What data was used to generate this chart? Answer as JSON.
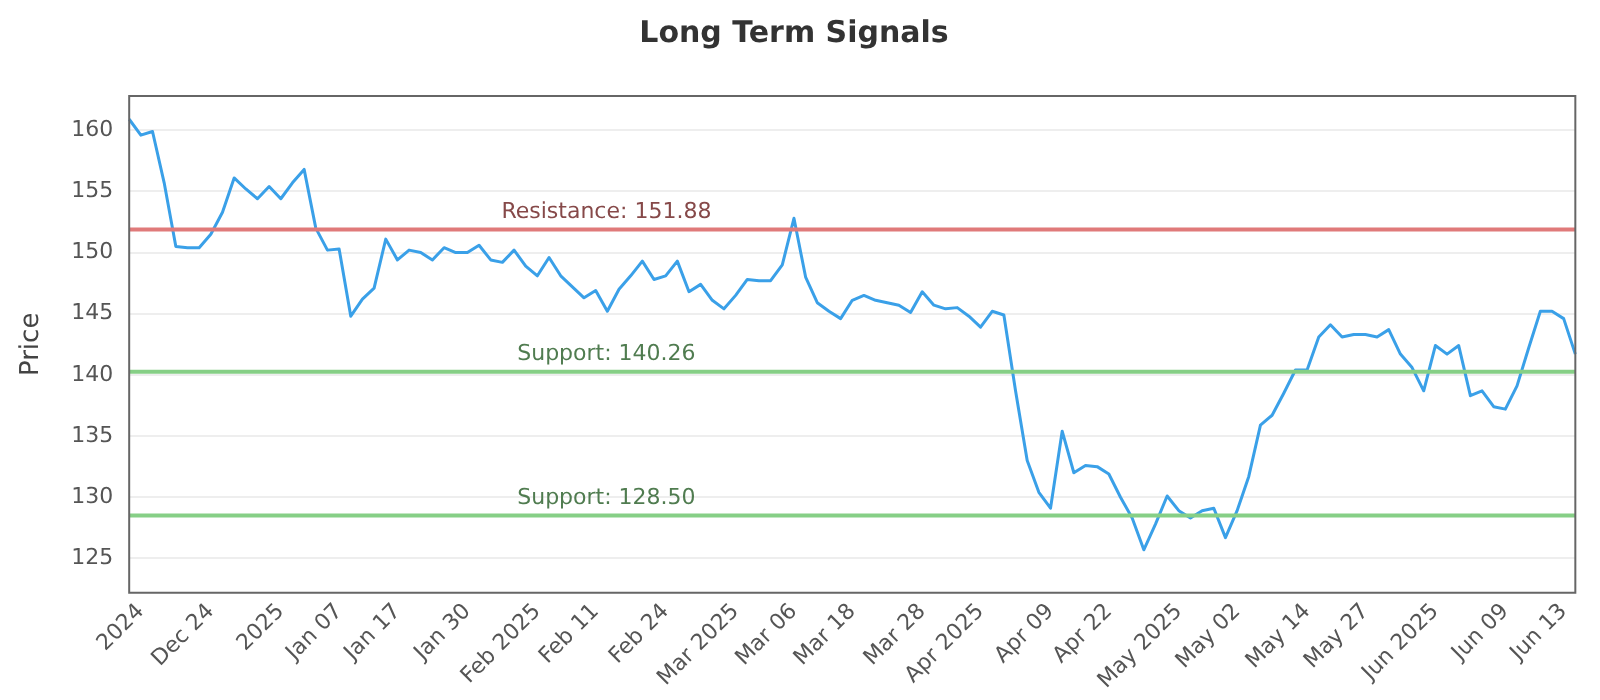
{
  "chart_data": {
    "type": "line",
    "title": "Long Term Signals",
    "ylabel": "Price",
    "categories": [
      null,
      "2024",
      null,
      null,
      null,
      null,
      null,
      "Dec 24",
      null,
      null,
      null,
      null,
      null,
      "2025",
      null,
      null,
      null,
      null,
      "Jan 07",
      null,
      null,
      null,
      null,
      "Jan 17",
      null,
      null,
      null,
      null,
      null,
      "Jan 30",
      null,
      null,
      null,
      null,
      null,
      "Feb 2025",
      null,
      null,
      null,
      null,
      "Feb 11",
      null,
      null,
      null,
      null,
      null,
      "Feb 24",
      null,
      null,
      null,
      null,
      null,
      "Mar 2025",
      null,
      null,
      null,
      null,
      "Mar 06",
      null,
      null,
      null,
      null,
      "Mar 18",
      null,
      null,
      null,
      null,
      null,
      "Mar 28",
      null,
      null,
      null,
      null,
      "Apr 2025",
      null,
      null,
      null,
      null,
      null,
      "Apr 09",
      null,
      null,
      null,
      null,
      "Apr 22",
      null,
      null,
      null,
      null,
      null,
      "May 2025",
      null,
      null,
      null,
      null,
      "May 02",
      null,
      null,
      null,
      null,
      null,
      "May 14",
      null,
      null,
      null,
      null,
      "May 27",
      null,
      null,
      null,
      null,
      null,
      "Jun 2025",
      null,
      null,
      null,
      null,
      null,
      "Jun 09",
      null,
      null,
      null,
      null,
      "Jun 13",
      null
    ],
    "series": [
      {
        "color": "#3aa0e8",
        "values": [
          160.9,
          159.6,
          159.9,
          155.7,
          150.5,
          150.4,
          150.4,
          151.5,
          153.3,
          156.1,
          155.2,
          154.4,
          155.4,
          154.4,
          155.7,
          156.8,
          152,
          150.2,
          150.3,
          144.8,
          146.2,
          147.1,
          151.1,
          149.4,
          150.2,
          150,
          149.4,
          150.4,
          150,
          150,
          150.6,
          149.4,
          149.2,
          150.2,
          148.9,
          148.1,
          149.6,
          148.1,
          147.2,
          146.3,
          146.9,
          145.2,
          147,
          148.1,
          149.3,
          147.8,
          148.1,
          149.3,
          146.8,
          147.4,
          146.1,
          145.4,
          146.5,
          147.8,
          147.7,
          147.7,
          149,
          152.8,
          148,
          145.9,
          145.2,
          144.6,
          146.1,
          146.5,
          146.1,
          145.9,
          145.7,
          145.1,
          146.8,
          145.7,
          145.4,
          145.5,
          144.8,
          143.9,
          145.2,
          144.9,
          138.7,
          133,
          130.4,
          129.1,
          135.4,
          132,
          132.6,
          132.5,
          131.9,
          130,
          128.3,
          125.7,
          127.8,
          130.1,
          128.9,
          128.3,
          128.9,
          129.1,
          126.7,
          128.9,
          131.7,
          135.9,
          136.7,
          138.5,
          140.4,
          140.4,
          143.1,
          144.1,
          143.1,
          143.3,
          143.3,
          143.1,
          143.7,
          141.7,
          140.6,
          138.7,
          142.4,
          141.7,
          142.4,
          138.3,
          138.7,
          137.4,
          137.2,
          139.1,
          142.2,
          145.2,
          145.2,
          144.6,
          141.7
        ]
      }
    ],
    "ylim": [
      122.2,
      162.8
    ],
    "yticks": [
      125,
      130,
      135,
      140,
      145,
      150,
      155,
      160
    ],
    "grid": "y",
    "legend": false,
    "marker": "none",
    "line_style": "solid",
    "ref_lines": [
      {
        "axis": "y",
        "value": 151.88,
        "label": "Resistance: 151.88",
        "color": "#e07a7a"
      },
      {
        "axis": "y",
        "value": 140.26,
        "label": "Support: 140.26",
        "color": "#86cf86"
      },
      {
        "axis": "y",
        "value": 128.5,
        "label": "Support: 128.50",
        "color": "#86cf86"
      }
    ]
  }
}
